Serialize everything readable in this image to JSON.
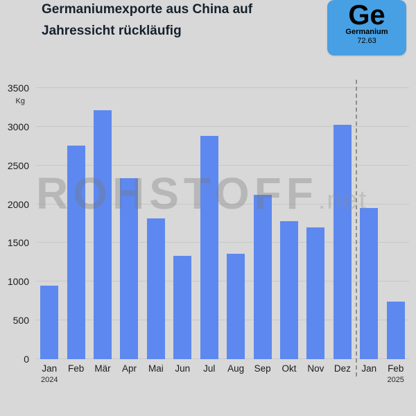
{
  "header": {
    "title": "Germaniumexporte aus China auf Jahressicht rückläufig"
  },
  "element": {
    "symbol": "Ge",
    "name": "Germanium",
    "mass": "72.63",
    "tile_color": "#47a0e3"
  },
  "watermark": {
    "main": "ROHSTOFF",
    "suffix": ".net"
  },
  "chart_data": {
    "type": "bar",
    "title": "Germaniumexporte aus China auf Jahressicht rückläufig",
    "ylabel": "Kg",
    "xlabel": "",
    "categories": [
      "Jan",
      "Feb",
      "Mär",
      "Apr",
      "Mai",
      "Jun",
      "Jul",
      "Aug",
      "Sep",
      "Okt",
      "Nov",
      "Dez",
      "Jan",
      "Feb"
    ],
    "category_years": {
      "0": "2024",
      "13": "2025"
    },
    "values": [
      950,
      2760,
      3210,
      2340,
      1820,
      1330,
      2880,
      1360,
      2120,
      1780,
      1700,
      3030,
      1950,
      740
    ],
    "ylim": [
      0,
      3500
    ],
    "ytick_step": 500,
    "separator_after_index": 11,
    "bar_color": "#5d88ef",
    "grid": true,
    "legend_position": "none"
  }
}
